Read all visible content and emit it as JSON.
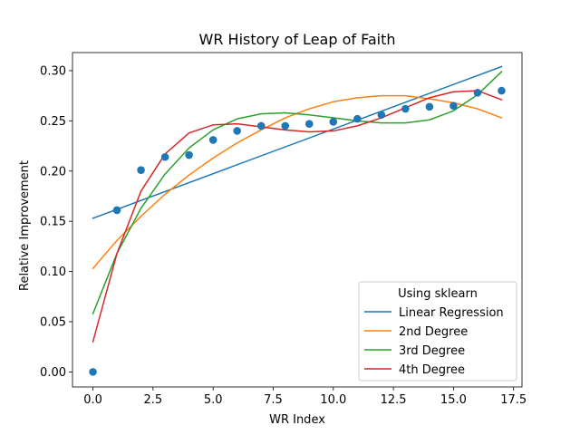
{
  "chart_data": {
    "type": "scatter",
    "title": "WR History of Leap of Faith",
    "xlabel": "WR Index",
    "ylabel": "Relative Improvement",
    "xlim": [
      -0.85,
      17.85
    ],
    "ylim": [
      -0.015,
      0.318
    ],
    "xticks": [
      0.0,
      2.5,
      5.0,
      7.5,
      10.0,
      12.5,
      15.0,
      17.5
    ],
    "xtick_labels": [
      "0.0",
      "2.5",
      "5.0",
      "7.5",
      "10.0",
      "12.5",
      "15.0",
      "17.5"
    ],
    "yticks": [
      0.0,
      0.05,
      0.1,
      0.15,
      0.2,
      0.25,
      0.3
    ],
    "ytick_labels": [
      "0.00",
      "0.05",
      "0.10",
      "0.15",
      "0.20",
      "0.25",
      "0.30"
    ],
    "grid": false,
    "legend": {
      "title": "Using sklearn",
      "placement": "lower right"
    },
    "scatter": {
      "color": "#1f77b4",
      "x": [
        0,
        1,
        2,
        3,
        4,
        5,
        6,
        7,
        8,
        9,
        10,
        11,
        12,
        13,
        14,
        15,
        16,
        17
      ],
      "y": [
        0.0,
        0.161,
        0.201,
        0.214,
        0.216,
        0.231,
        0.24,
        0.245,
        0.245,
        0.247,
        0.249,
        0.252,
        0.256,
        0.262,
        0.264,
        0.265,
        0.278,
        0.28
      ]
    },
    "series": [
      {
        "name": "Linear Regression",
        "color": "#1f77b4",
        "x": [
          0,
          17
        ],
        "y": [
          0.153,
          0.304
        ]
      },
      {
        "name": "2nd Degree",
        "color": "#ff7f0e",
        "x": [
          0,
          1,
          2,
          3,
          4,
          5,
          6,
          7,
          8,
          9,
          10,
          11,
          12,
          13,
          14,
          15,
          16,
          17
        ],
        "y": [
          0.103,
          0.131,
          0.155,
          0.177,
          0.196,
          0.213,
          0.228,
          0.241,
          0.253,
          0.262,
          0.269,
          0.273,
          0.275,
          0.275,
          0.272,
          0.268,
          0.262,
          0.253
        ]
      },
      {
        "name": "3rd Degree",
        "color": "#2ca02c",
        "x": [
          0,
          1,
          2,
          3,
          4,
          5,
          6,
          7,
          8,
          9,
          10,
          11,
          12,
          13,
          14,
          15,
          16,
          17
        ],
        "y": [
          0.058,
          0.118,
          0.163,
          0.197,
          0.223,
          0.241,
          0.252,
          0.257,
          0.258,
          0.256,
          0.253,
          0.25,
          0.248,
          0.248,
          0.251,
          0.26,
          0.276,
          0.299
        ]
      },
      {
        "name": "4th Degree",
        "color": "#d62728",
        "x": [
          0,
          1,
          2,
          3,
          4,
          5,
          6,
          7,
          8,
          9,
          10,
          11,
          12,
          13,
          14,
          15,
          16,
          17
        ],
        "y": [
          0.03,
          0.118,
          0.18,
          0.217,
          0.238,
          0.246,
          0.247,
          0.244,
          0.241,
          0.239,
          0.24,
          0.245,
          0.253,
          0.263,
          0.273,
          0.279,
          0.28,
          0.271
        ]
      }
    ]
  }
}
